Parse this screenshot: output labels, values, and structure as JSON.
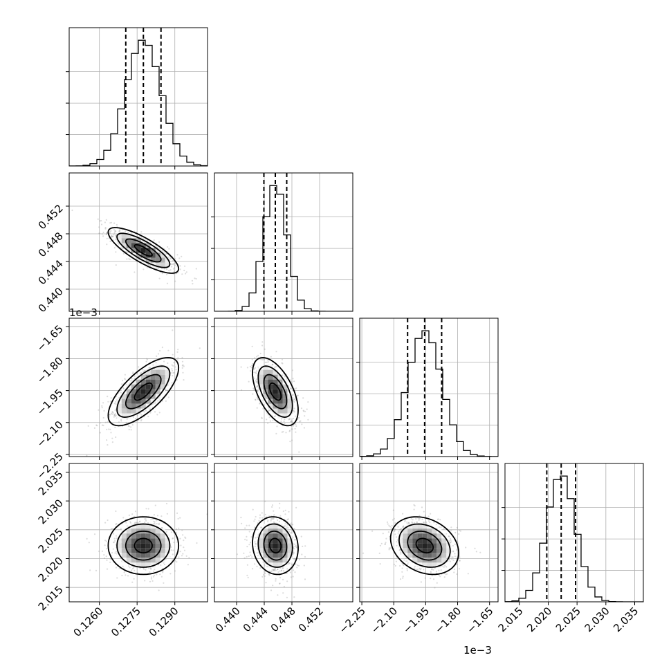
{
  "chart_data": {
    "type": "corner",
    "variables": [
      {
        "ticks": [
          0.126,
          0.1275,
          0.129
        ],
        "tick_labels": [
          "0.1260",
          "0.1275",
          "0.1290"
        ],
        "range": [
          0.1248,
          0.1303
        ],
        "mean": 0.12775,
        "std": 0.0007,
        "quantiles": [
          0.12705,
          0.12775,
          0.12845
        ],
        "offset_label": ""
      },
      {
        "ticks": [
          0.44,
          0.444,
          0.448,
          0.452
        ],
        "tick_labels": [
          "0.440",
          "0.444",
          "0.448",
          "0.452"
        ],
        "range": [
          0.4368,
          0.4568
        ],
        "mean": 0.4456,
        "std": 0.00165,
        "quantiles": [
          0.44395,
          0.4456,
          0.44725
        ],
        "offset_label": ""
      },
      {
        "ticks": [
          -2.25,
          -2.1,
          -1.95,
          -1.8,
          -1.65
        ],
        "tick_labels": [
          "−2.25",
          "−2.10",
          "−1.95",
          "−1.80",
          "−1.65"
        ],
        "range": [
          -2.26,
          -1.61
        ],
        "mean": -1.955,
        "std": 0.08,
        "quantiles": [
          -2.035,
          -1.955,
          -1.875
        ],
        "offset_label": "1e−3"
      },
      {
        "ticks": [
          2.015,
          2.02,
          2.025,
          2.03,
          2.035
        ],
        "tick_labels": [
          "2.015",
          "2.020",
          "2.025",
          "2.030",
          "2.035"
        ],
        "range": [
          2.0125,
          2.0365
        ],
        "mean": 2.02225,
        "std": 0.0025,
        "quantiles": [
          2.01975,
          2.02225,
          2.02475
        ],
        "offset_label": ""
      }
    ],
    "correlations": [
      {
        "i": 1,
        "j": 0,
        "r": -0.8
      },
      {
        "i": 2,
        "j": 0,
        "r": 0.7
      },
      {
        "i": 2,
        "j": 1,
        "r": -0.55
      },
      {
        "i": 3,
        "j": 0,
        "r": 0.0
      },
      {
        "i": 3,
        "j": 1,
        "r": -0.1
      },
      {
        "i": 3,
        "j": 2,
        "r": -0.25
      }
    ],
    "histogram_bins": 20,
    "contour_levels": [
      0.5,
      1.0,
      1.5,
      2.0
    ],
    "grid": true
  }
}
